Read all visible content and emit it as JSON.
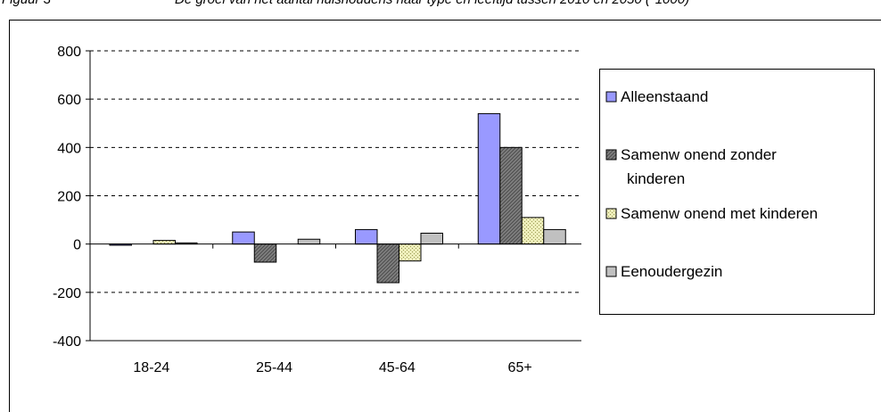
{
  "caption": {
    "figure_label": "Figuur 3",
    "title": "De groei van het aantal huishoudens naar type en leeftijd tussen 2010 en 2050 (*1000)"
  },
  "chart_data": {
    "type": "bar",
    "title": "",
    "xlabel": "",
    "ylabel": "",
    "categories": [
      "18-24",
      "25-44",
      "45-64",
      "65+"
    ],
    "ylim": [
      -400,
      800
    ],
    "yticks": [
      -400,
      -200,
      0,
      200,
      400,
      600,
      800
    ],
    "ytick_labels": [
      "-400",
      "-200",
      "0",
      "200",
      "400",
      "600",
      "800"
    ],
    "grid": "horizontal dashed",
    "legend_position": "right",
    "series": [
      {
        "name": "Alleenstaand",
        "legend_lines": [
          "Alleenstaand"
        ],
        "color": "#9999ff",
        "pattern": "solid",
        "values": [
          -5,
          50,
          60,
          540
        ]
      },
      {
        "name": "Samenwonend zonder kinderen",
        "legend_lines": [
          "Samenw onend zonder",
          "kinderen"
        ],
        "color": "#808080",
        "pattern": "hatch",
        "values": [
          0,
          -75,
          -160,
          400
        ]
      },
      {
        "name": "Samenwonend met kinderen",
        "legend_lines": [
          "Samenw onend met kinderen"
        ],
        "color": "#eeeebb",
        "pattern": "dots",
        "values": [
          15,
          0,
          -70,
          110
        ]
      },
      {
        "name": "Eenoudergezin",
        "legend_lines": [
          "Eenoudergezin"
        ],
        "color": "#c0c0c0",
        "pattern": "solid",
        "values": [
          5,
          20,
          45,
          60
        ]
      }
    ]
  }
}
